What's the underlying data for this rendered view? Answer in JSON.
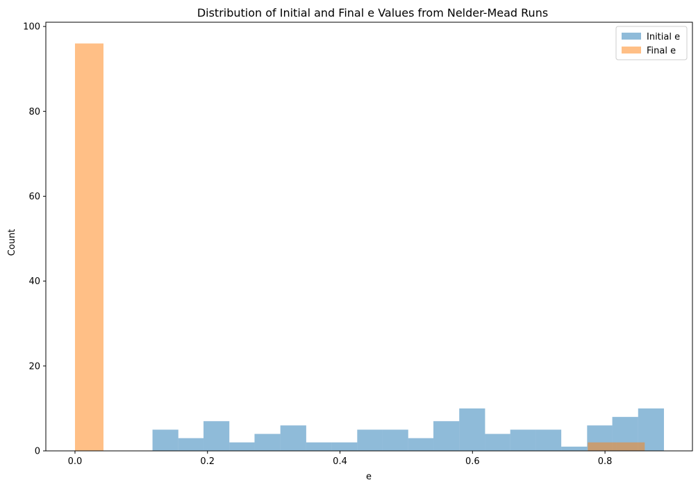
{
  "chart_data": {
    "type": "bar",
    "title": "Distribution of Initial and Final e Values from Nelder-Mead Runs",
    "xlabel": "e",
    "ylabel": "Count",
    "xlim": [
      -0.044,
      0.932
    ],
    "ylim": [
      0,
      101
    ],
    "xticks": [
      0.0,
      0.2,
      0.4,
      0.6,
      0.8
    ],
    "xtick_labels": [
      "0.0",
      "0.2",
      "0.4",
      "0.6",
      "0.8"
    ],
    "yticks": [
      0,
      20,
      40,
      60,
      80,
      100
    ],
    "ytick_labels": [
      "0",
      "20",
      "40",
      "60",
      "80",
      "100"
    ],
    "grid": false,
    "legend_position": "top-right",
    "series": [
      {
        "name": "Initial e",
        "color": "#1f77b4",
        "opacity": 0.5,
        "bins": [
          {
            "x0": 0.117,
            "x1": 0.156,
            "count": 5
          },
          {
            "x0": 0.156,
            "x1": 0.194,
            "count": 3
          },
          {
            "x0": 0.194,
            "x1": 0.233,
            "count": 7
          },
          {
            "x0": 0.233,
            "x1": 0.271,
            "count": 2
          },
          {
            "x0": 0.271,
            "x1": 0.31,
            "count": 4
          },
          {
            "x0": 0.31,
            "x1": 0.349,
            "count": 6
          },
          {
            "x0": 0.349,
            "x1": 0.387,
            "count": 2
          },
          {
            "x0": 0.387,
            "x1": 0.426,
            "count": 2
          },
          {
            "x0": 0.426,
            "x1": 0.464,
            "count": 5
          },
          {
            "x0": 0.464,
            "x1": 0.503,
            "count": 5
          },
          {
            "x0": 0.503,
            "x1": 0.541,
            "count": 3
          },
          {
            "x0": 0.541,
            "x1": 0.58,
            "count": 7
          },
          {
            "x0": 0.58,
            "x1": 0.619,
            "count": 10
          },
          {
            "x0": 0.619,
            "x1": 0.657,
            "count": 4
          },
          {
            "x0": 0.657,
            "x1": 0.696,
            "count": 5
          },
          {
            "x0": 0.696,
            "x1": 0.734,
            "count": 5
          },
          {
            "x0": 0.734,
            "x1": 0.773,
            "count": 1
          },
          {
            "x0": 0.773,
            "x1": 0.811,
            "count": 6
          },
          {
            "x0": 0.811,
            "x1": 0.85,
            "count": 8
          },
          {
            "x0": 0.85,
            "x1": 0.889,
            "count": 10
          }
        ]
      },
      {
        "name": "Final e",
        "color": "#ff7f0e",
        "opacity": 0.5,
        "bins": [
          {
            "x0": 0.0,
            "x1": 0.043,
            "count": 96
          },
          {
            "x0": 0.043,
            "x1": 0.086,
            "count": 0
          },
          {
            "x0": 0.086,
            "x1": 0.129,
            "count": 0
          },
          {
            "x0": 0.129,
            "x1": 0.172,
            "count": 0
          },
          {
            "x0": 0.172,
            "x1": 0.215,
            "count": 0
          },
          {
            "x0": 0.215,
            "x1": 0.258,
            "count": 0
          },
          {
            "x0": 0.258,
            "x1": 0.301,
            "count": 0
          },
          {
            "x0": 0.301,
            "x1": 0.344,
            "count": 0
          },
          {
            "x0": 0.344,
            "x1": 0.387,
            "count": 0
          },
          {
            "x0": 0.387,
            "x1": 0.43,
            "count": 0
          },
          {
            "x0": 0.43,
            "x1": 0.473,
            "count": 0
          },
          {
            "x0": 0.473,
            "x1": 0.516,
            "count": 0
          },
          {
            "x0": 0.516,
            "x1": 0.559,
            "count": 0
          },
          {
            "x0": 0.559,
            "x1": 0.602,
            "count": 0
          },
          {
            "x0": 0.602,
            "x1": 0.645,
            "count": 0
          },
          {
            "x0": 0.645,
            "x1": 0.688,
            "count": 0
          },
          {
            "x0": 0.688,
            "x1": 0.731,
            "count": 0
          },
          {
            "x0": 0.731,
            "x1": 0.774,
            "count": 0
          },
          {
            "x0": 0.774,
            "x1": 0.817,
            "count": 2
          },
          {
            "x0": 0.817,
            "x1": 0.86,
            "count": 2
          }
        ]
      }
    ]
  }
}
